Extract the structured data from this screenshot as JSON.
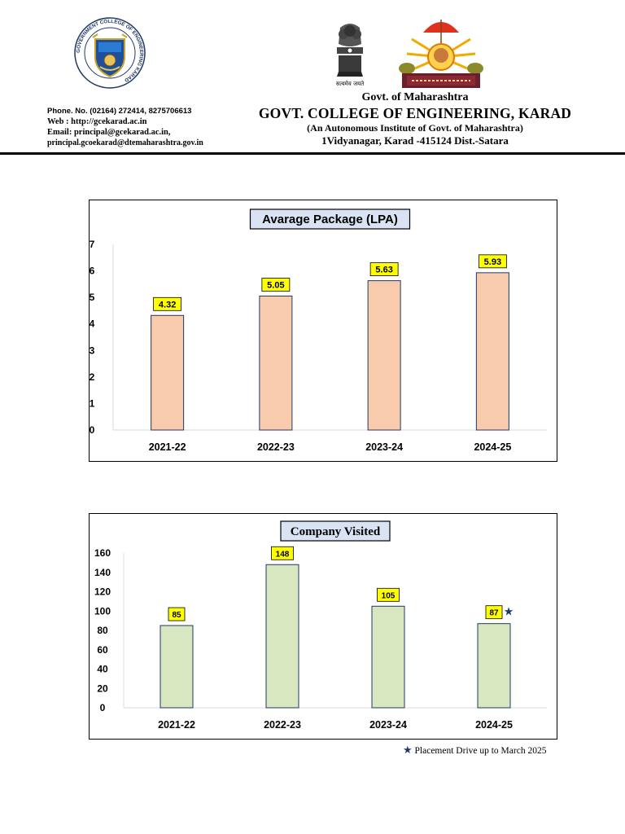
{
  "header": {
    "govt": "Govt. of Maharashtra",
    "college": "GOVT. COLLEGE OF ENGINEERING, KARAD",
    "autonomous": "(An Autonomous Institute of Govt. of Maharashtra)",
    "address": "1Vidyanagar, Karad -415124 Dist.-Satara",
    "emblem_motto": "सत्यमेव जयते"
  },
  "contact": {
    "phone": "Phone. No. (02164) 272414, 8275706613",
    "web": "Web :  http://gcekarad.ac.in",
    "email": "Email: principal@gcekarad.ac.in,",
    "email2": "principal.gcoekarad@dtemaharashtra.gov.in"
  },
  "logos": {
    "left_ring_text": "GOVERNMENT COLLEGE OF ENGINEERING KARAD"
  },
  "colors": {
    "bar1": "#f8cbad",
    "bar2": "#d9e7c1",
    "bar_border": "#1f3864",
    "label_bg": "#ffff00",
    "title_bg": "#dae3f3"
  },
  "chart_data": [
    {
      "type": "bar",
      "title": "Avarage Package (LPA)",
      "categories": [
        "2021-22",
        "2022-23",
        "2023-24",
        "2024-25"
      ],
      "values": [
        4.32,
        5.05,
        5.63,
        5.93
      ],
      "value_labels": [
        "4.32",
        "5.05",
        "5.63",
        "5.93"
      ],
      "ylim": [
        0,
        7
      ],
      "yticks": [
        "0",
        "1",
        "2",
        "3",
        "4",
        "5",
        "6",
        "7"
      ],
      "xlabel": "",
      "ylabel": "",
      "grid": false
    },
    {
      "type": "bar",
      "title": "Company Visited",
      "categories": [
        "2021-22",
        "2022-23",
        "2023-24",
        "2024-25"
      ],
      "values": [
        85,
        148,
        105,
        87
      ],
      "value_labels": [
        "85",
        "148",
        "105",
        "87"
      ],
      "ylim": [
        0,
        160
      ],
      "yticks": [
        "0",
        "20",
        "40",
        "60",
        "80",
        "100",
        "120",
        "140",
        "160"
      ],
      "xlabel": "",
      "ylabel": "",
      "grid": false,
      "marked_category": "2024-25"
    }
  ],
  "footnote": {
    "star": "★",
    "text": "Placement Drive up to March 2025"
  }
}
